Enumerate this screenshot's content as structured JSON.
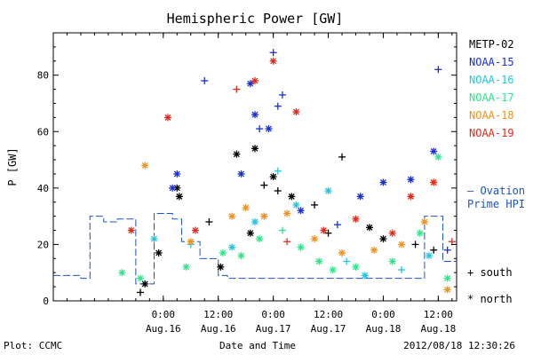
{
  "chart_data": {
    "type": "scatter",
    "title": "Hemispheric Power [GW]",
    "xlabel": "Date and Time",
    "ylabel": "P [GW]",
    "xlim": [
      "2012-08-15T00:00",
      "2012-08-18T16:00"
    ],
    "ylim": [
      0,
      95
    ],
    "yticks": [
      0,
      20,
      40,
      60,
      80
    ],
    "xticks": [
      {
        "time": "2012-08-16T00:00",
        "line1": "0:00",
        "line2": "Aug.16"
      },
      {
        "time": "2012-08-16T12:00",
        "line1": "12:00",
        "line2": "Aug.16"
      },
      {
        "time": "2012-08-17T00:00",
        "line1": "0:00",
        "line2": "Aug.17"
      },
      {
        "time": "2012-08-17T12:00",
        "line1": "12:00",
        "line2": "Aug.17"
      },
      {
        "time": "2012-08-18T00:00",
        "line1": "0:00",
        "line2": "Aug.18"
      },
      {
        "time": "2012-08-18T12:00",
        "line1": "12:00",
        "line2": "Aug.18"
      }
    ],
    "legend_placement": "right",
    "marker_legend": [
      {
        "symbol": "+",
        "label": "south"
      },
      {
        "symbol": "*",
        "label": "north"
      }
    ],
    "footer": {
      "left": "Plot: CCMC",
      "center": "Date and Time",
      "right": "2012/08/18 12:30:26"
    },
    "series": [
      {
        "name": "METP-02",
        "color": "#000000",
        "points": [
          [
            "2012-08-15T19:00",
            3,
            "+"
          ],
          [
            "2012-08-15T20:00",
            6,
            "*"
          ],
          [
            "2012-08-15T23:00",
            17,
            "*"
          ],
          [
            "2012-08-16T03:00",
            40,
            "*"
          ],
          [
            "2012-08-16T03:30",
            37,
            "*"
          ],
          [
            "2012-08-16T10:00",
            28,
            "+"
          ],
          [
            "2012-08-16T12:30",
            12,
            "*"
          ],
          [
            "2012-08-16T16:00",
            52,
            "*"
          ],
          [
            "2012-08-16T19:00",
            24,
            "*"
          ],
          [
            "2012-08-16T20:00",
            54,
            "*"
          ],
          [
            "2012-08-16T22:00",
            41,
            "+"
          ],
          [
            "2012-08-17T00:00",
            44,
            "*"
          ],
          [
            "2012-08-17T01:00",
            39,
            "+"
          ],
          [
            "2012-08-17T04:00",
            37,
            "*"
          ],
          [
            "2012-08-17T09:00",
            34,
            "+"
          ],
          [
            "2012-08-17T12:00",
            24,
            "+"
          ],
          [
            "2012-08-17T15:00",
            51,
            "+"
          ],
          [
            "2012-08-17T21:00",
            26,
            "*"
          ],
          [
            "2012-08-18T00:00",
            22,
            "*"
          ],
          [
            "2012-08-18T07:00",
            20,
            "+"
          ],
          [
            "2012-08-18T11:00",
            18,
            "+"
          ]
        ]
      },
      {
        "name": "NOAA-15",
        "color": "#1a2fd0",
        "points": [
          [
            "2012-08-16T02:00",
            40,
            "*"
          ],
          [
            "2012-08-16T03:00",
            45,
            "*"
          ],
          [
            "2012-08-16T09:00",
            78,
            "+"
          ],
          [
            "2012-08-16T17:00",
            45,
            "*"
          ],
          [
            "2012-08-16T19:00",
            77,
            "*"
          ],
          [
            "2012-08-16T20:00",
            66,
            "*"
          ],
          [
            "2012-08-16T21:00",
            61,
            "+"
          ],
          [
            "2012-08-16T23:00",
            61,
            "*"
          ],
          [
            "2012-08-17T00:00",
            88,
            "+"
          ],
          [
            "2012-08-17T01:00",
            69,
            "+"
          ],
          [
            "2012-08-17T02:00",
            73,
            "+"
          ],
          [
            "2012-08-17T06:00",
            32,
            "*"
          ],
          [
            "2012-08-17T14:00",
            27,
            "+"
          ],
          [
            "2012-08-17T19:00",
            37,
            "*"
          ],
          [
            "2012-08-18T00:00",
            42,
            "*"
          ],
          [
            "2012-08-18T06:00",
            43,
            "*"
          ],
          [
            "2012-08-18T11:00",
            53,
            "*"
          ],
          [
            "2012-08-18T12:00",
            82,
            "+"
          ],
          [
            "2012-08-18T14:00",
            18,
            "+"
          ]
        ]
      },
      {
        "name": "NOAA-16",
        "color": "#22c6e0",
        "points": [
          [
            "2012-08-15T22:00",
            22,
            "*"
          ],
          [
            "2012-08-16T06:00",
            20,
            "+"
          ],
          [
            "2012-08-16T15:00",
            19,
            "*"
          ],
          [
            "2012-08-16T20:00",
            28,
            "*"
          ],
          [
            "2012-08-17T01:00",
            46,
            "+"
          ],
          [
            "2012-08-17T05:00",
            34,
            "*"
          ],
          [
            "2012-08-17T12:00",
            39,
            "*"
          ],
          [
            "2012-08-17T16:00",
            14,
            "+"
          ],
          [
            "2012-08-17T20:00",
            9,
            "*"
          ],
          [
            "2012-08-18T04:00",
            11,
            "+"
          ],
          [
            "2012-08-18T10:00",
            16,
            "*"
          ]
        ]
      },
      {
        "name": "NOAA-17",
        "color": "#2ee68a",
        "points": [
          [
            "2012-08-15T15:00",
            10,
            "*"
          ],
          [
            "2012-08-15T19:00",
            8,
            "*"
          ],
          [
            "2012-08-16T05:00",
            12,
            "*"
          ],
          [
            "2012-08-16T13:00",
            17,
            "*"
          ],
          [
            "2012-08-16T17:00",
            16,
            "*"
          ],
          [
            "2012-08-16T21:00",
            22,
            "*"
          ],
          [
            "2012-08-17T02:00",
            25,
            "+"
          ],
          [
            "2012-08-17T06:00",
            19,
            "*"
          ],
          [
            "2012-08-17T10:00",
            14,
            "*"
          ],
          [
            "2012-08-17T13:00",
            11,
            "*"
          ],
          [
            "2012-08-17T18:00",
            12,
            "*"
          ],
          [
            "2012-08-18T02:00",
            14,
            "*"
          ],
          [
            "2012-08-18T08:00",
            24,
            "*"
          ],
          [
            "2012-08-18T12:00",
            51,
            "*"
          ],
          [
            "2012-08-18T14:00",
            8,
            "*"
          ]
        ]
      },
      {
        "name": "NOAA-18",
        "color": "#f0921e",
        "points": [
          [
            "2012-08-15T20:00",
            48,
            "*"
          ],
          [
            "2012-08-16T06:00",
            21,
            "*"
          ],
          [
            "2012-08-16T15:00",
            30,
            "*"
          ],
          [
            "2012-08-16T18:00",
            33,
            "*"
          ],
          [
            "2012-08-16T22:00",
            30,
            "*"
          ],
          [
            "2012-08-17T03:00",
            31,
            "*"
          ],
          [
            "2012-08-17T09:00",
            22,
            "*"
          ],
          [
            "2012-08-17T15:00",
            17,
            "*"
          ],
          [
            "2012-08-17T22:00",
            18,
            "*"
          ],
          [
            "2012-08-18T04:00",
            20,
            "*"
          ],
          [
            "2012-08-18T09:00",
            28,
            "*"
          ],
          [
            "2012-08-18T11:00",
            42,
            "*"
          ],
          [
            "2012-08-18T14:00",
            4,
            "*"
          ]
        ]
      },
      {
        "name": "NOAA-19",
        "color": "#e02a1e",
        "points": [
          [
            "2012-08-15T17:00",
            25,
            "*"
          ],
          [
            "2012-08-16T01:00",
            65,
            "*"
          ],
          [
            "2012-08-16T07:00",
            25,
            "*"
          ],
          [
            "2012-08-16T16:00",
            75,
            "+"
          ],
          [
            "2012-08-16T20:00",
            78,
            "*"
          ],
          [
            "2012-08-17T00:00",
            85,
            "*"
          ],
          [
            "2012-08-17T03:00",
            21,
            "+"
          ],
          [
            "2012-08-17T05:00",
            67,
            "*"
          ],
          [
            "2012-08-17T11:00",
            25,
            "*"
          ],
          [
            "2012-08-17T18:00",
            29,
            "*"
          ],
          [
            "2012-08-18T02:00",
            24,
            "*"
          ],
          [
            "2012-08-18T06:00",
            37,
            "*"
          ],
          [
            "2012-08-18T11:00",
            42,
            "*"
          ],
          [
            "2012-08-18T15:00",
            21,
            "+"
          ]
        ]
      },
      {
        "name": "– Ovation Prime HPI",
        "legend_lines": [
          "– Ovation",
          "Prime HPI"
        ],
        "color": "#1a55c8",
        "style": "step",
        "values": [
          [
            "2012-08-15T00:00",
            9
          ],
          [
            "2012-08-15T06:00",
            8
          ],
          [
            "2012-08-15T08:00",
            30
          ],
          [
            "2012-08-15T11:00",
            28
          ],
          [
            "2012-08-15T14:00",
            29
          ],
          [
            "2012-08-15T18:00",
            6
          ],
          [
            "2012-08-15T22:00",
            31
          ],
          [
            "2012-08-16T02:00",
            29
          ],
          [
            "2012-08-16T04:00",
            21
          ],
          [
            "2012-08-16T08:00",
            15
          ],
          [
            "2012-08-16T12:00",
            9
          ],
          [
            "2012-08-16T14:00",
            8
          ],
          [
            "2012-08-17T10:00",
            8
          ],
          [
            "2012-08-18T00:00",
            8
          ],
          [
            "2012-08-18T09:00",
            30
          ],
          [
            "2012-08-18T12:00",
            30
          ],
          [
            "2012-08-18T13:00",
            14
          ],
          [
            "2012-08-18T16:00",
            14
          ]
        ]
      }
    ]
  }
}
